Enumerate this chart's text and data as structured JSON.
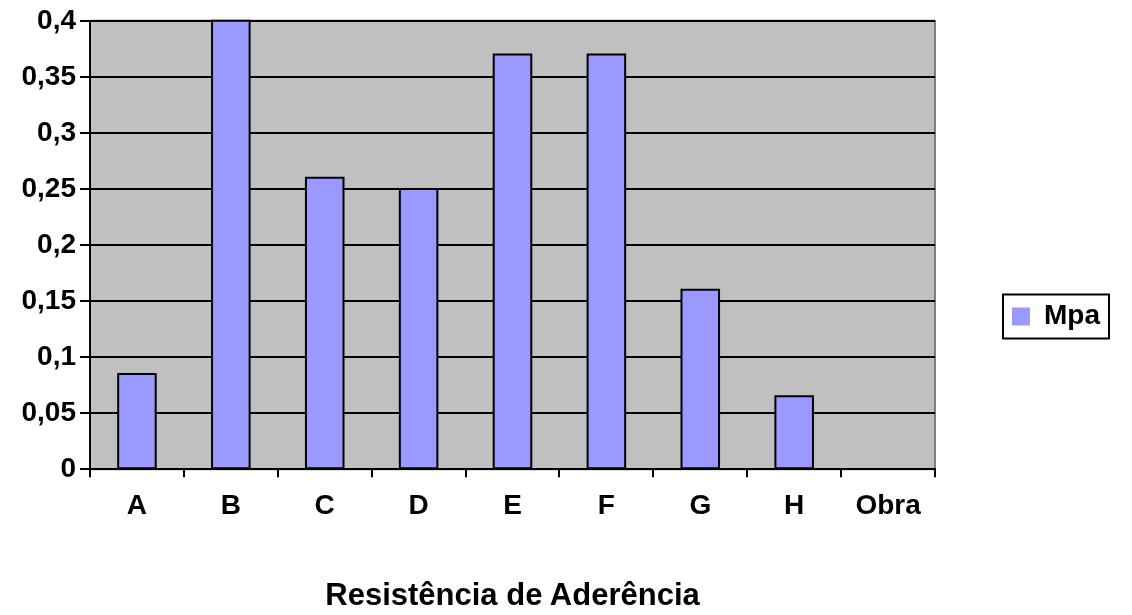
{
  "chart_data": {
    "type": "bar",
    "xlabel": "Resistência de Aderência",
    "categories": [
      "A",
      "B",
      "C",
      "D",
      "E",
      "F",
      "G",
      "H",
      "Obra"
    ],
    "series": [
      {
        "name": "Mpa",
        "color": "#9999ff",
        "values": [
          0.085,
          0.4,
          0.26,
          0.25,
          0.37,
          0.37,
          0.16,
          0.065,
          null
        ]
      }
    ],
    "ylim": [
      0,
      0.4
    ],
    "yticks": [
      0,
      {
        "value": 0.05,
        "label": "0,05"
      },
      {
        "value": 0.1,
        "label": "0,1"
      },
      {
        "value": 0.15,
        "label": "0,15"
      },
      {
        "value": 0.2,
        "label": "0,2"
      },
      {
        "value": 0.25,
        "label": "0,25"
      },
      {
        "value": 0.3,
        "label": "0,3"
      },
      {
        "value": 0.35,
        "label": "0,35"
      },
      {
        "value": 0.4,
        "label": "0,4"
      }
    ],
    "grid": "y",
    "legend": "right"
  }
}
